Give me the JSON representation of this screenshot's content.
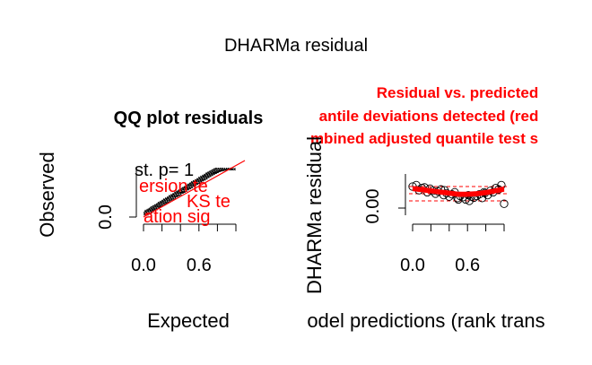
{
  "figure": {
    "title": "DHARMa residual"
  },
  "chart_data": [
    {
      "type": "scatter",
      "title": "QQ plot residuals",
      "xlabel": "Expected",
      "ylabel": "Observed",
      "xlim": [
        0,
        1
      ],
      "ylim": [
        0,
        1
      ],
      "xticks": [
        0.0,
        0.2,
        0.4,
        0.6,
        0.8,
        1.0
      ],
      "xtick_labels": [
        "0.0",
        "0.6"
      ],
      "yticks": [
        0.0
      ],
      "ytick_labels": [
        "0.0"
      ],
      "reference_line": {
        "from": [
          0,
          0
        ],
        "to": [
          1,
          1
        ],
        "color": "#ff0000"
      },
      "test_annotations": [
        {
          "text": "st. p= 1",
          "color": "#000000"
        },
        {
          "text": "ersion te",
          "color": "#ff0000"
        },
        {
          "text": "KS te",
          "color": "#ff0000"
        },
        {
          "text": "ation  sig",
          "color": "#ff0000"
        }
      ],
      "series": [
        {
          "x": [
            0.02,
            0.04,
            0.06,
            0.08,
            0.1,
            0.12,
            0.14,
            0.16,
            0.18,
            0.2,
            0.22,
            0.24,
            0.26,
            0.28,
            0.3,
            0.32,
            0.34,
            0.36,
            0.38,
            0.4,
            0.42,
            0.44,
            0.46,
            0.48,
            0.5,
            0.52,
            0.54,
            0.56,
            0.58,
            0.6,
            0.62,
            0.64,
            0.66,
            0.68,
            0.7,
            0.72,
            0.74,
            0.76,
            0.78,
            0.8,
            0.82,
            0.84,
            0.86,
            0.88,
            0.9,
            0.92,
            0.94,
            0.96,
            0.98
          ],
          "y": [
            0.08,
            0.1,
            0.12,
            0.15,
            0.17,
            0.19,
            0.21,
            0.24,
            0.26,
            0.28,
            0.31,
            0.33,
            0.35,
            0.38,
            0.4,
            0.42,
            0.45,
            0.47,
            0.49,
            0.52,
            0.54,
            0.56,
            0.59,
            0.61,
            0.63,
            0.66,
            0.68,
            0.7,
            0.72,
            0.75,
            0.77,
            0.79,
            0.81,
            0.84,
            0.86,
            0.88,
            0.9,
            0.92,
            0.94,
            0.96,
            0.97,
            0.98,
            0.99,
            1.0,
            1.0,
            1.0,
            1.0,
            1.0,
            1.0
          ],
          "marker": "triangle-open",
          "color": "#000000"
        }
      ]
    },
    {
      "type": "scatter",
      "title": "Residual vs. predicted",
      "title_lines": [
        "Residual vs. predicted",
        "antile deviations detected (red",
        "mbined adjusted quantile test s"
      ],
      "title_color": "#ff0000",
      "xlabel": "odel predictions (rank trans",
      "ylabel": "DHARMa residual",
      "xlim": [
        0,
        1
      ],
      "ylim": [
        0,
        1
      ],
      "xticks": [
        0.0,
        0.2,
        0.4,
        0.6,
        0.8,
        1.0
      ],
      "xtick_labels": [
        "0.0",
        "0.6"
      ],
      "yticks": [
        0.0
      ],
      "ytick_labels": [
        "0.00"
      ],
      "reference_lines_y": [
        0.25,
        0.5,
        0.75
      ],
      "reference_line_color": "#ff0000",
      "series": [
        {
          "x": [
            0.0,
            0.04,
            0.07,
            0.1,
            0.13,
            0.16,
            0.19,
            0.22,
            0.25,
            0.28,
            0.31,
            0.34,
            0.37,
            0.4,
            0.43,
            0.46,
            0.49,
            0.52,
            0.55,
            0.58,
            0.61,
            0.64,
            0.67,
            0.7,
            0.73,
            0.76,
            0.79,
            0.82,
            0.85,
            0.88,
            0.91,
            0.94,
            0.97,
            1.0,
            0.5,
            0.62,
            0.35,
            0.78
          ],
          "y": [
            0.75,
            0.8,
            0.62,
            0.7,
            0.72,
            0.55,
            0.68,
            0.6,
            0.5,
            0.58,
            0.65,
            0.45,
            0.52,
            0.4,
            0.48,
            0.55,
            0.35,
            0.42,
            0.38,
            0.3,
            0.45,
            0.4,
            0.36,
            0.42,
            0.48,
            0.35,
            0.52,
            0.45,
            0.6,
            0.55,
            0.7,
            0.65,
            0.8,
            0.15,
            0.3,
            0.25,
            0.62,
            0.55
          ],
          "marker": "circle-open",
          "color": "#000000"
        }
      ],
      "quantile_curves": [
        {
          "x": [
            0,
            0.1,
            0.2,
            0.3,
            0.4,
            0.5,
            0.6,
            0.7,
            0.8,
            0.9,
            1.0
          ],
          "y": [
            0.72,
            0.68,
            0.64,
            0.6,
            0.56,
            0.52,
            0.52,
            0.54,
            0.58,
            0.64,
            0.7
          ]
        },
        {
          "x": [
            0,
            0.1,
            0.2,
            0.3,
            0.4,
            0.5,
            0.6,
            0.7,
            0.8,
            0.9,
            1.0
          ],
          "y": [
            0.68,
            0.64,
            0.6,
            0.56,
            0.52,
            0.48,
            0.48,
            0.5,
            0.54,
            0.6,
            0.66
          ]
        },
        {
          "x": [
            0,
            0.1,
            0.2,
            0.3,
            0.4,
            0.5,
            0.6,
            0.7,
            0.8,
            0.9,
            1.0
          ],
          "y": [
            0.64,
            0.6,
            0.56,
            0.52,
            0.48,
            0.44,
            0.44,
            0.46,
            0.5,
            0.56,
            0.62
          ]
        }
      ],
      "curve_color": "#ff0000"
    }
  ]
}
